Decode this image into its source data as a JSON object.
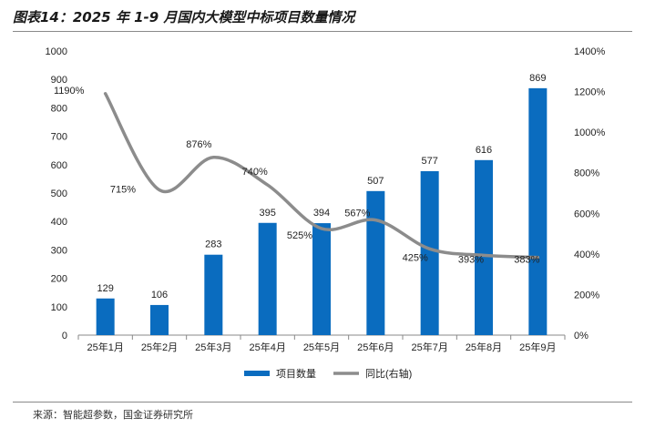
{
  "figure_title": "图表14：2025 年 1-9 月国内大模型中标项目数量情况",
  "source": "来源：智能超参数，国金证券研究所",
  "colors": {
    "bar": "#0a6cbf",
    "line": "#8c8c8c",
    "axis": "#888888"
  },
  "chart_data": {
    "type": "bar",
    "categories": [
      "25年1月",
      "25年2月",
      "25年3月",
      "25年4月",
      "25年5月",
      "25年6月",
      "25年7月",
      "25年8月",
      "25年9月"
    ],
    "series": [
      {
        "name": "项目数量",
        "type": "bar",
        "axis": "left",
        "values": [
          129,
          106,
          283,
          395,
          394,
          507,
          577,
          616,
          869
        ],
        "labels": [
          "129",
          "106",
          "283",
          "395",
          "394",
          "507",
          "577",
          "616",
          "869"
        ]
      },
      {
        "name": "同比(右轴)",
        "type": "line",
        "axis": "right",
        "values": [
          1190,
          715,
          876,
          740,
          525,
          567,
          425,
          393,
          383
        ],
        "labels": [
          "1190%",
          "715%",
          "876%",
          "740%",
          "525%",
          "567%",
          "425%",
          "393%",
          "383%"
        ]
      }
    ],
    "y_left": {
      "min": 0,
      "max": 1000,
      "step": 100,
      "tick_labels": [
        "0",
        "100",
        "200",
        "300",
        "400",
        "500",
        "600",
        "700",
        "800",
        "900",
        "1000"
      ]
    },
    "y_right": {
      "min": 0,
      "max": 1400,
      "step": 200,
      "tick_labels": [
        "0%",
        "200%",
        "400%",
        "600%",
        "800%",
        "1000%",
        "1200%",
        "1400%"
      ]
    },
    "legend": {
      "position": "bottom"
    },
    "grid": false
  }
}
